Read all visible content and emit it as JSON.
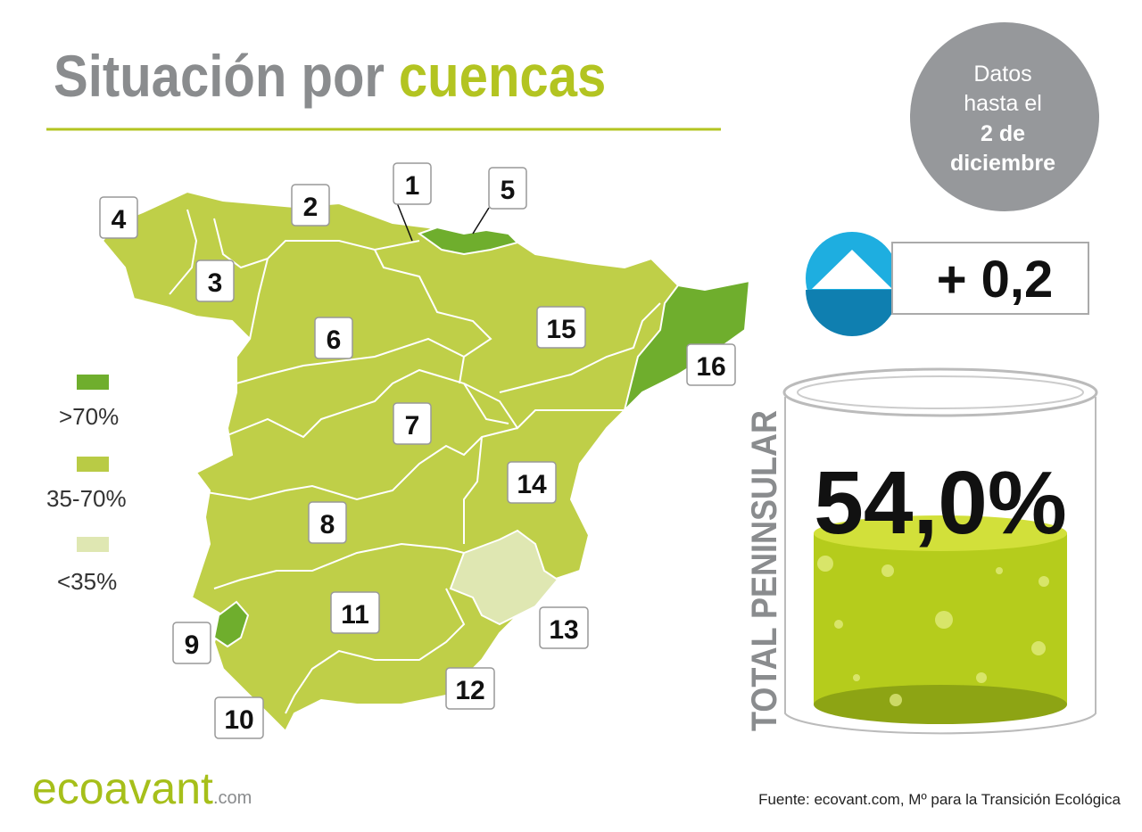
{
  "header": {
    "title_1": "Situación por",
    "title_2": "cuencas"
  },
  "date_badge": {
    "line_1": "Datos",
    "line_2": "hasta el",
    "line_3": "2 de",
    "line_4": "diciembre"
  },
  "legend": [
    ">70%",
    "35-70%",
    "<35%"
  ],
  "basins": [
    "1",
    "2",
    "3",
    "4",
    "5",
    "6",
    "7",
    "8",
    "9",
    "10",
    "11",
    "12",
    "13",
    "14",
    "15",
    "16"
  ],
  "change": "+ 0,2",
  "total": {
    "label": "TOTAL PENINSULAR",
    "value": "54,0%"
  },
  "footer": {
    "logo": "ecoavant",
    "logo_suffix": ".com",
    "source": "Fuente: ecovant.com, Mº para la Transición Ecológica"
  }
}
